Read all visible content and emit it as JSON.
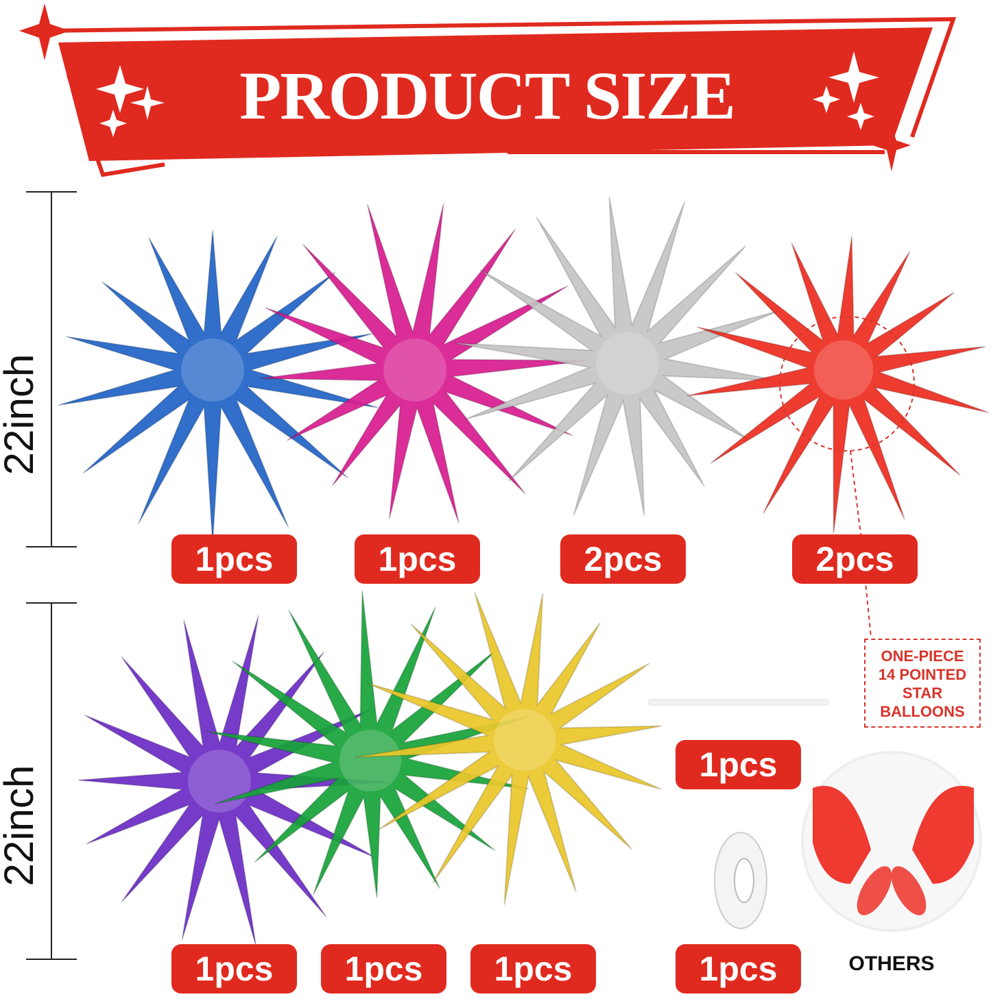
{
  "banner": {
    "title": "PRODUCT SIZE",
    "color": "#e02a1f"
  },
  "dimensions": [
    {
      "label": "22inch"
    },
    {
      "label": "22inch"
    }
  ],
  "balloons": [
    {
      "color_name": "blue",
      "color": "#1f63c6",
      "quantity": "1pcs"
    },
    {
      "color_name": "magenta",
      "color": "#d81b8f",
      "quantity": "1pcs"
    },
    {
      "color_name": "silver",
      "color": "#c4c4c4",
      "quantity": "2pcs"
    },
    {
      "color_name": "red",
      "color": "#ee2b20",
      "quantity": "2pcs"
    },
    {
      "color_name": "purple",
      "color": "#6a2bc4",
      "quantity": "1pcs"
    },
    {
      "color_name": "green",
      "color": "#17a33a",
      "quantity": "1pcs"
    },
    {
      "color_name": "gold",
      "color": "#eac72a",
      "quantity": "1pcs"
    }
  ],
  "accessories": [
    {
      "item": "stick",
      "quantity": "1pcs"
    },
    {
      "item": "ribbon",
      "quantity": "1pcs"
    }
  ],
  "note": {
    "lines": [
      "ONE-PIECE",
      "14 POINTED",
      "STAR",
      "BALLOONS"
    ]
  },
  "others_label": "OTHERS"
}
